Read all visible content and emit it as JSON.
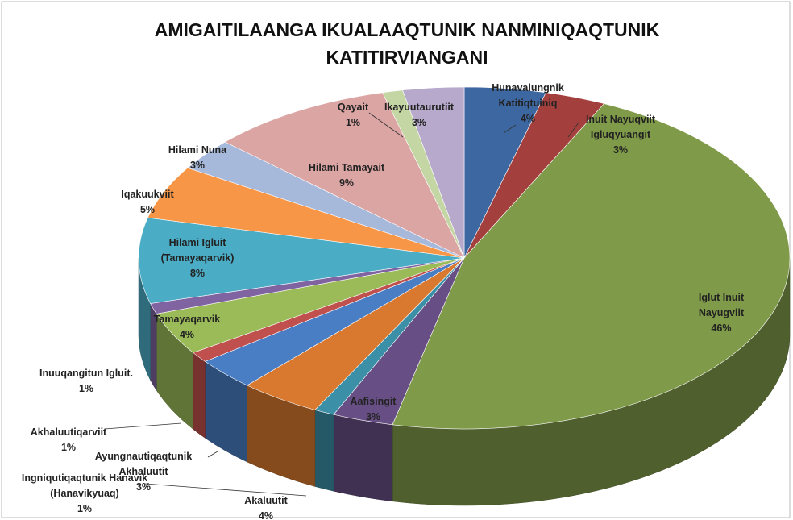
{
  "chart_data": {
    "type": "pie3d",
    "title": "AMIGAITILAANGA IKUALAAQTUNIK NANMINIQAQTUNIK\nKATITIRVIANGANI",
    "categories": [
      "Hunavalungnik\nKatitiqtuiniq",
      "Inuit Nayuqviit\nIgluqyuangit",
      "Iglut Inuit Nayugviit",
      "Aafisingit",
      "Ingniqutiqaqtunik Hanavik\n(Hanavikyuaq)",
      "Akaluutit",
      "Ayungnautiqaqtunik\nAkhaluutit",
      "Akhaluutiqarviit",
      "Tamayaqarvik",
      "Inuuqangitun Igluit.",
      "Hilami Igluit\n(Tamayaqarvik)",
      "Iqakuukviit",
      "Hilami Nuna",
      "Hilami Tamayait",
      "Qayait",
      "Ikayuutaurutiit"
    ],
    "values": [
      4,
      3,
      46,
      3,
      1,
      4,
      3,
      1,
      4,
      1,
      8,
      5,
      3,
      9,
      1,
      3
    ],
    "value_labels": [
      "4%",
      "3%",
      "46%",
      "3%",
      "1%",
      "4%",
      "3%",
      "1%",
      "4%",
      "1%",
      "8%",
      "5%",
      "3%",
      "9%",
      "1%",
      "3%"
    ],
    "colors": [
      "#3d67a0",
      "#a33f3d",
      "#7f9a48",
      "#674f85",
      "#3b8fa6",
      "#d8792f",
      "#4a7ec4",
      "#c0504d",
      "#9bbb59",
      "#8064a2",
      "#4bacc6",
      "#f79646",
      "#a7b9db",
      "#dba5a4",
      "#c3d6a4",
      "#b7a9cb"
    ]
  }
}
